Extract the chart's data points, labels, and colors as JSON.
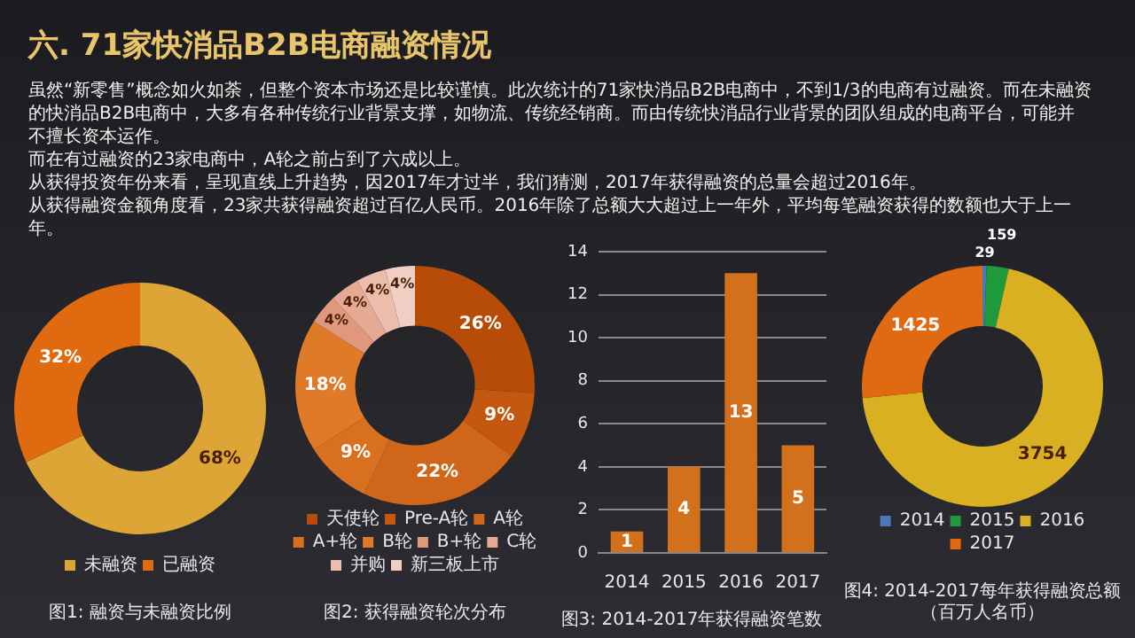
{
  "chart_data": [
    {
      "type": "other",
      "title": "六. 71家快消品B2B电商融资情况",
      "annotations": [
        "虽然“新零售”概念如火如荼，但整个资本市场还是比较谨慎。此次统计的71家快消品B2B电商中，不到1/3的电商有过融资。而在未融资的快消品B2B电商中，大多有各种传统行业背景支撑，如物流、传统经销商。而由传统快消品行业背景的团队组成的电商平台，可能并不擅长资本运作。",
        "而在有过融资的23家电商中，A轮之前占到了六成以上。",
        "从获得投资年份来看，呈现直线上升趋势，因2017年才过半，我们猜测，2017年获得融资的总量会超过2016年。",
        "从获得融资金额角度看，23家共获得融资超过百亿人民币。2016年除了总额大大超过上一年外，平均每笔融资获得的数额也大于上一年。"
      ]
    },
    {
      "type": "donut",
      "title": "图1: 融资与未融资比例",
      "categories": [
        "未融资",
        "已融资"
      ],
      "values": [
        68,
        32
      ],
      "value_labels": [
        "68%",
        "32%"
      ],
      "colors": [
        "#dca535",
        "#e06a10"
      ],
      "legend": "bottom"
    },
    {
      "type": "donut",
      "title": "图2: 获得融资轮次分布",
      "categories": [
        "天使轮",
        "Pre-A轮",
        "A轮",
        "A+轮",
        "B轮",
        "B+轮",
        "C轮",
        "并购",
        "新三板上市"
      ],
      "values": [
        26,
        9,
        22,
        9,
        18,
        4,
        4,
        4,
        4
      ],
      "value_labels": [
        "26%",
        "9%",
        "22%",
        "9%",
        "18%",
        "4%",
        "4%",
        "4%",
        "4%"
      ],
      "colors": [
        "#b64c08",
        "#c45810",
        "#d0661a",
        "#d87020",
        "#de7a28",
        "#e0987c",
        "#e6a994",
        "#ecbcac",
        "#f0cec4"
      ],
      "legend": "bottom"
    },
    {
      "type": "bar",
      "title": "图3: 2014-2017年获得融资笔数",
      "categories": [
        "2014",
        "2015",
        "2016",
        "2017"
      ],
      "values": [
        1,
        4,
        13,
        5
      ],
      "color": "#d2701c",
      "ylim": [
        0,
        14
      ],
      "yticks": [
        0,
        2,
        4,
        6,
        8,
        10,
        12,
        14
      ],
      "grid": "y",
      "data_labels": true,
      "legend": false
    },
    {
      "type": "donut",
      "title": "图4: 2014-2017每年获得融资总额",
      "subtitle": "（百万人名币）",
      "categories": [
        "2014",
        "2015",
        "2016",
        "2017"
      ],
      "values": [
        29,
        159,
        3754,
        1425
      ],
      "colors": [
        "#4a78b8",
        "#1e9a3c",
        "#d8b022",
        "#e06a12"
      ],
      "data_labels": true,
      "legend": "bottom"
    }
  ]
}
